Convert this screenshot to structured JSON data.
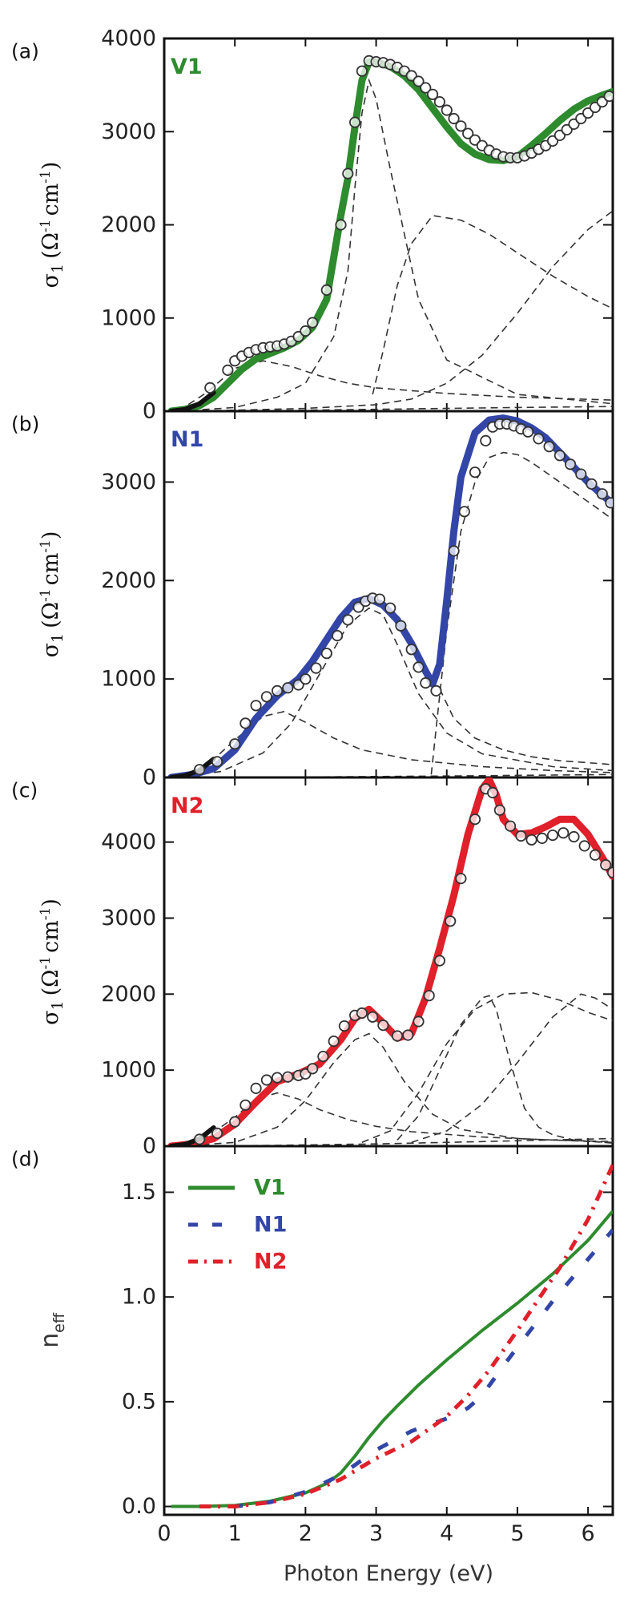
{
  "figure": {
    "xlabel": "Photon Energy (eV)"
  },
  "colors": {
    "V1": "#2e8b2e",
    "N1": "#3346a8",
    "N2": "#e0202a",
    "component": "#333333",
    "marker": "#333333"
  },
  "chart_data": [
    {
      "panel": "(a)",
      "series_label": "V1",
      "color_key": "V1",
      "type": "line",
      "ylabel": "σ",
      "ylabel_sub": "1",
      "ylabel_units": "(Ω",
      "ylabel_sup1": "-1",
      "ylabel_mid": "cm",
      "ylabel_sup2": "-1",
      "ylabel_end": ")",
      "xlim": [
        0,
        6.35
      ],
      "ylim": [
        0,
        4000
      ],
      "yticks": [
        0,
        1000,
        2000,
        3000,
        4000
      ],
      "ytick_labels": [
        "0",
        "1000",
        "2000",
        "3000",
        "4000"
      ],
      "fit": {
        "x": [
          0.1,
          0.3,
          0.5,
          0.7,
          0.9,
          1.1,
          1.3,
          1.5,
          1.7,
          1.9,
          2.1,
          2.3,
          2.5,
          2.6,
          2.7,
          2.8,
          2.9,
          3.0,
          3.2,
          3.4,
          3.6,
          3.8,
          4.0,
          4.2,
          4.4,
          4.6,
          4.8,
          5.0,
          5.2,
          5.4,
          5.6,
          5.8,
          6.0,
          6.2,
          6.35
        ],
        "y": [
          0,
          20,
          60,
          150,
          300,
          450,
          560,
          620,
          680,
          760,
          900,
          1200,
          2100,
          2500,
          3050,
          3550,
          3750,
          3750,
          3700,
          3600,
          3450,
          3250,
          3050,
          2870,
          2760,
          2700,
          2690,
          2730,
          2850,
          2980,
          3120,
          3240,
          3330,
          3390,
          3430
        ]
      },
      "data": {
        "x": [
          0.65,
          0.9,
          1.0,
          1.1,
          1.2,
          1.3,
          1.4,
          1.5,
          1.6,
          1.7,
          1.8,
          1.9,
          2.0,
          2.1,
          2.3,
          2.5,
          2.6,
          2.7,
          2.8,
          2.9,
          3.0,
          3.1,
          3.2,
          3.3,
          3.4,
          3.5,
          3.6,
          3.7,
          3.8,
          3.9,
          4.0,
          4.1,
          4.2,
          4.3,
          4.4,
          4.5,
          4.6,
          4.7,
          4.8,
          4.9,
          5.0,
          5.1,
          5.2,
          5.3,
          5.4,
          5.5,
          5.6,
          5.7,
          5.8,
          5.9,
          6.0,
          6.1,
          6.2,
          6.3
        ],
        "y": [
          250,
          440,
          540,
          590,
          630,
          660,
          680,
          690,
          700,
          720,
          750,
          800,
          860,
          950,
          1300,
          2000,
          2550,
          3100,
          3650,
          3760,
          3750,
          3740,
          3720,
          3690,
          3650,
          3600,
          3540,
          3470,
          3400,
          3320,
          3230,
          3140,
          3060,
          2980,
          2910,
          2850,
          2800,
          2760,
          2730,
          2720,
          2720,
          2740,
          2770,
          2810,
          2850,
          2900,
          2960,
          3020,
          3080,
          3140,
          3200,
          3260,
          3320,
          3380
        ]
      },
      "components": [
        {
          "x": [
            0.2,
            0.6,
            1.0,
            1.4,
            1.8,
            2.2,
            2.6,
            3.0,
            3.5,
            4.0,
            5.0,
            6.35
          ],
          "y": [
            0,
            200,
            460,
            540,
            480,
            380,
            300,
            250,
            220,
            190,
            150,
            120
          ]
        },
        {
          "x": [
            0.2,
            1.0,
            1.6,
            2.0,
            2.4,
            2.6,
            2.7,
            2.8,
            2.9,
            3.0,
            3.2,
            3.6,
            4.0,
            5.0,
            6.35
          ],
          "y": [
            0,
            40,
            150,
            300,
            800,
            1500,
            2400,
            3200,
            3550,
            3350,
            2600,
            1200,
            550,
            180,
            80
          ]
        },
        {
          "x": [
            2.95,
            3.1,
            3.3,
            3.5,
            3.8,
            4.2,
            4.6,
            5.0,
            5.5,
            6.0,
            6.35
          ],
          "y": [
            180,
            650,
            1350,
            1800,
            2100,
            2050,
            1900,
            1700,
            1450,
            1230,
            1100
          ]
        },
        {
          "x": [
            0.2,
            1.0,
            2.0,
            3.0,
            3.5,
            4.0,
            4.5,
            5.0,
            5.5,
            6.0,
            6.35
          ],
          "y": [
            0,
            10,
            30,
            70,
            130,
            300,
            600,
            1050,
            1550,
            1950,
            2150
          ]
        },
        {
          "x": [
            0.2,
            1.0,
            2.0,
            3.0,
            4.0,
            5.0,
            6.35
          ],
          "y": [
            0,
            5,
            10,
            20,
            30,
            40,
            50
          ]
        }
      ]
    },
    {
      "panel": "(b)",
      "series_label": "N1",
      "color_key": "N1",
      "type": "line",
      "ylabel": "σ",
      "ylabel_sub": "1",
      "ylabel_units": "(Ω",
      "ylabel_sup1": "-1",
      "ylabel_mid": "cm",
      "ylabel_sup2": "-1",
      "ylabel_end": ")",
      "xlim": [
        0,
        6.35
      ],
      "ylim": [
        0,
        3720
      ],
      "yticks": [
        0,
        1000,
        2000,
        3000
      ],
      "ytick_labels": [
        "0",
        "1000",
        "2000",
        "3000"
      ],
      "fit": {
        "x": [
          0.1,
          0.4,
          0.7,
          1.0,
          1.3,
          1.6,
          1.9,
          2.1,
          2.3,
          2.5,
          2.7,
          2.9,
          3.1,
          3.3,
          3.5,
          3.7,
          3.8,
          3.9,
          4.0,
          4.1,
          4.2,
          4.4,
          4.6,
          4.8,
          5.0,
          5.2,
          5.4,
          5.6,
          5.8,
          6.0,
          6.2,
          6.35
        ],
        "y": [
          0,
          30,
          90,
          280,
          600,
          830,
          1000,
          1180,
          1400,
          1620,
          1780,
          1820,
          1750,
          1600,
          1360,
          1080,
          950,
          1150,
          1800,
          2500,
          3050,
          3500,
          3630,
          3650,
          3620,
          3550,
          3450,
          3300,
          3150,
          3000,
          2870,
          2780
        ]
      },
      "data": {
        "x": [
          0.5,
          0.75,
          1.0,
          1.15,
          1.3,
          1.45,
          1.6,
          1.75,
          1.9,
          2.0,
          2.15,
          2.3,
          2.45,
          2.6,
          2.75,
          2.85,
          2.95,
          3.05,
          3.2,
          3.35,
          3.5,
          3.6,
          3.7,
          3.85,
          4.1,
          4.25,
          4.4,
          4.55,
          4.65,
          4.75,
          4.85,
          4.95,
          5.05,
          5.15,
          5.3,
          5.45,
          5.6,
          5.75,
          5.9,
          6.05,
          6.2,
          6.32
        ],
        "y": [
          80,
          160,
          340,
          550,
          730,
          820,
          880,
          910,
          940,
          1000,
          1110,
          1260,
          1440,
          1600,
          1730,
          1790,
          1820,
          1810,
          1720,
          1540,
          1300,
          1120,
          960,
          880,
          2300,
          2700,
          3100,
          3420,
          3560,
          3590,
          3590,
          3570,
          3540,
          3510,
          3440,
          3360,
          3270,
          3180,
          3080,
          2980,
          2880,
          2790
        ]
      },
      "components": [
        {
          "x": [
            0.2,
            0.6,
            1.0,
            1.4,
            1.7,
            2.0,
            2.4,
            2.8,
            3.5,
            4.5,
            5.5,
            6.35
          ],
          "y": [
            0,
            120,
            380,
            620,
            670,
            560,
            400,
            280,
            180,
            110,
            70,
            50
          ]
        },
        {
          "x": [
            0.2,
            0.8,
            1.4,
            1.8,
            2.2,
            2.6,
            2.9,
            3.1,
            3.3,
            3.6,
            4.0,
            4.5,
            5.5,
            6.35
          ],
          "y": [
            0,
            60,
            250,
            550,
            1050,
            1550,
            1720,
            1650,
            1350,
            850,
            450,
            240,
            110,
            70
          ]
        },
        {
          "x": [
            3.78,
            3.85,
            4.0,
            4.2,
            4.4,
            4.6,
            4.8,
            5.0,
            5.2,
            5.5,
            5.8,
            6.1,
            6.35
          ],
          "y": [
            30,
            500,
            1500,
            2500,
            3000,
            3250,
            3300,
            3280,
            3200,
            3050,
            2900,
            2750,
            2620
          ]
        },
        {
          "x": [
            3.9,
            4.1,
            4.4,
            4.8,
            5.2,
            5.6,
            6.0,
            6.35
          ],
          "y": [
            900,
            600,
            400,
            280,
            210,
            170,
            150,
            130
          ]
        },
        {
          "x": [
            0.2,
            2.0,
            4.0,
            6.35
          ],
          "y": [
            0,
            5,
            15,
            30
          ]
        }
      ]
    },
    {
      "panel": "(c)",
      "series_label": "N2",
      "color_key": "N2",
      "type": "line",
      "ylabel": "σ",
      "ylabel_sub": "1",
      "ylabel_units": "(Ω",
      "ylabel_sup1": "-1",
      "ylabel_mid": "cm",
      "ylabel_sup2": "-1",
      "ylabel_end": ")",
      "xlim": [
        0,
        6.35
      ],
      "ylim": [
        0,
        4850
      ],
      "yticks": [
        0,
        1000,
        2000,
        3000,
        4000
      ],
      "ytick_labels": [
        "0",
        "1000",
        "2000",
        "3000",
        "4000"
      ],
      "fit": {
        "x": [
          0.1,
          0.4,
          0.7,
          1.0,
          1.3,
          1.6,
          1.9,
          2.2,
          2.5,
          2.7,
          2.9,
          3.1,
          3.3,
          3.5,
          3.7,
          3.9,
          4.1,
          4.3,
          4.5,
          4.6,
          4.7,
          4.8,
          5.0,
          5.2,
          5.4,
          5.6,
          5.8,
          6.0,
          6.2,
          6.35
        ],
        "y": [
          0,
          30,
          100,
          290,
          580,
          850,
          950,
          1080,
          1400,
          1680,
          1800,
          1620,
          1420,
          1480,
          1950,
          2600,
          3300,
          4100,
          4700,
          4820,
          4620,
          4300,
          4100,
          4120,
          4200,
          4300,
          4300,
          4100,
          3800,
          3550
        ]
      },
      "data": {
        "x": [
          0.5,
          0.75,
          1.0,
          1.15,
          1.3,
          1.45,
          1.6,
          1.75,
          1.9,
          2.0,
          2.1,
          2.25,
          2.4,
          2.55,
          2.7,
          2.8,
          2.95,
          3.1,
          3.3,
          3.45,
          3.6,
          3.75,
          3.9,
          4.05,
          4.2,
          4.4,
          4.55,
          4.65,
          4.75,
          4.9,
          5.05,
          5.2,
          5.35,
          5.5,
          5.65,
          5.8,
          5.95,
          6.1,
          6.25,
          6.35
        ],
        "y": [
          90,
          170,
          320,
          540,
          760,
          870,
          900,
          910,
          930,
          950,
          1020,
          1180,
          1380,
          1580,
          1720,
          1750,
          1700,
          1590,
          1450,
          1460,
          1640,
          1980,
          2440,
          2960,
          3520,
          4300,
          4700,
          4650,
          4420,
          4210,
          4080,
          4030,
          4050,
          4090,
          4120,
          4070,
          3950,
          3830,
          3700,
          3600
        ]
      },
      "components": [
        {
          "x": [
            0.2,
            0.6,
            1.0,
            1.3,
            1.6,
            1.9,
            2.2,
            2.6,
            3.0,
            3.5,
            4.5,
            5.5,
            6.35
          ],
          "y": [
            0,
            120,
            380,
            620,
            700,
            620,
            480,
            350,
            260,
            190,
            120,
            80,
            60
          ]
        },
        {
          "x": [
            0.2,
            1.0,
            1.6,
            2.0,
            2.4,
            2.7,
            2.9,
            3.1,
            3.4,
            3.8,
            4.2,
            5.0,
            6.35
          ],
          "y": [
            0,
            50,
            250,
            600,
            1100,
            1400,
            1480,
            1300,
            850,
            420,
            220,
            100,
            50
          ]
        },
        {
          "x": [
            3.3,
            3.6,
            3.9,
            4.2,
            4.5,
            4.6,
            4.7,
            4.9,
            5.1,
            5.3,
            5.5,
            5.8,
            6.35
          ],
          "y": [
            80,
            400,
            1000,
            1600,
            1950,
            1980,
            1800,
            1100,
            500,
            250,
            150,
            80,
            40
          ]
        },
        {
          "x": [
            2.8,
            3.2,
            3.6,
            4.0,
            4.4,
            4.8,
            5.2,
            5.6,
            6.0,
            6.35
          ],
          "y": [
            50,
            200,
            700,
            1350,
            1800,
            2000,
            2020,
            1920,
            1760,
            1650
          ]
        },
        {
          "x": [
            3.5,
            4.0,
            4.5,
            5.0,
            5.5,
            5.9,
            6.1,
            6.35
          ],
          "y": [
            50,
            200,
            550,
            1100,
            1700,
            2000,
            1950,
            1800
          ]
        },
        {
          "x": [
            0.2,
            1.5,
            3.0,
            4.5,
            6.35
          ],
          "y": [
            0,
            10,
            30,
            60,
            100
          ]
        }
      ]
    },
    {
      "panel": "(d)",
      "type": "line",
      "ylabel": "n",
      "ylabel_sub": "eff",
      "xlim": [
        0,
        6.35
      ],
      "ylim": [
        -0.04,
        1.72
      ],
      "yticks": [
        0,
        0.5,
        1.0,
        1.5
      ],
      "ytick_labels": [
        "0.0",
        "0.5",
        "1.0",
        "1.5"
      ],
      "xticks": [
        0,
        1,
        2,
        3,
        4,
        5,
        6
      ],
      "xtick_labels": [
        "0",
        "1",
        "2",
        "3",
        "4",
        "5",
        "6"
      ],
      "legend": {
        "position": "top-left",
        "entries": [
          "V1",
          "N1",
          "N2"
        ]
      },
      "series": [
        {
          "name": "V1",
          "style": "solid",
          "color_key": "V1",
          "x": [
            0.1,
            0.5,
            1.0,
            1.5,
            2.0,
            2.3,
            2.5,
            2.7,
            2.9,
            3.1,
            3.3,
            3.6,
            4.0,
            4.5,
            5.0,
            5.5,
            6.0,
            6.35
          ],
          "y": [
            0,
            0,
            0.005,
            0.025,
            0.065,
            0.11,
            0.16,
            0.24,
            0.33,
            0.41,
            0.48,
            0.58,
            0.7,
            0.84,
            0.97,
            1.11,
            1.27,
            1.41
          ]
        },
        {
          "name": "N1",
          "style": "dashed",
          "color_key": "N1",
          "x": [
            0.5,
            1.0,
            1.5,
            2.0,
            2.5,
            3.0,
            3.5,
            4.0,
            4.3,
            4.5,
            4.8,
            5.0,
            5.5,
            6.0,
            6.35
          ],
          "y": [
            0,
            0,
            0.02,
            0.07,
            0.15,
            0.27,
            0.36,
            0.42,
            0.47,
            0.53,
            0.67,
            0.76,
            0.98,
            1.18,
            1.32
          ]
        },
        {
          "name": "N2",
          "style": "dashdot",
          "color_key": "N2",
          "x": [
            0.5,
            1.0,
            1.5,
            2.0,
            2.5,
            3.0,
            3.5,
            4.0,
            4.3,
            4.6,
            5.0,
            5.3,
            5.6,
            6.0,
            6.35
          ],
          "y": [
            0,
            0,
            0.02,
            0.06,
            0.13,
            0.23,
            0.31,
            0.43,
            0.53,
            0.65,
            0.84,
            0.99,
            1.14,
            1.37,
            1.63
          ]
        }
      ]
    }
  ]
}
